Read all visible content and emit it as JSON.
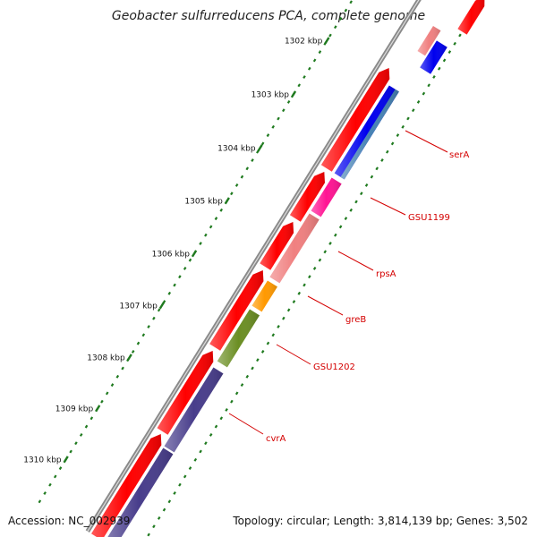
{
  "title": "Geobacter sulfurreducens PCA, complete genome",
  "footer": {
    "accession": "Accession: NC_002939",
    "summary": "Topology: circular; Length: 3,814,139 bp; Genes: 3,502"
  },
  "ticks": [
    "1302 kbp",
    "1303 kbp",
    "1304 kbp",
    "1305 kbp",
    "1306 kbp",
    "1307 kbp",
    "1308 kbp",
    "1309 kbp",
    "1310 kbp"
  ],
  "genes": [
    "serA",
    "GSU1199",
    "rpsA",
    "greB",
    "GSU1202",
    "cvrA"
  ],
  "colors": {
    "backbone": "#8a8a8a",
    "cds": "#ff0000",
    "blue": "#0000ee",
    "steelblue": "#4682b4",
    "magenta": "#ff1493",
    "salmon": "#f08080",
    "orange": "#ff9900",
    "olive": "#6b8e23",
    "slateblue": "#483d8b",
    "tick": "#1f7a1f",
    "gene_label": "#d40000"
  }
}
